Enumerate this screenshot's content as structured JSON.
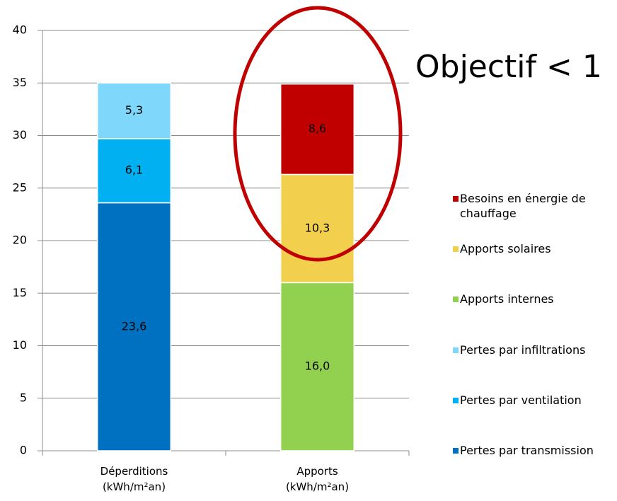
{
  "chart_data": {
    "type": "stacked_bar",
    "categories": [
      "Déperditions\n(kWh/m²an)",
      "Apports\n(kWh/m²an)"
    ],
    "series": [
      {
        "name": "Pertes par transmission",
        "color": "#0070c0",
        "values": [
          23.6,
          null
        ],
        "value_labels": [
          "23,6",
          null
        ]
      },
      {
        "name": "Pertes par ventilation",
        "color": "#00b0f0",
        "values": [
          6.1,
          null
        ],
        "value_labels": [
          "6,1",
          null
        ]
      },
      {
        "name": "Pertes par infiltrations",
        "color": "#7fd7fb",
        "values": [
          5.3,
          null
        ],
        "value_labels": [
          "5,3",
          null
        ]
      },
      {
        "name": "Apports internes",
        "color": "#92d050",
        "values": [
          null,
          16.0
        ],
        "value_labels": [
          null,
          "16,0"
        ]
      },
      {
        "name": "Apports solaires",
        "color": "#f2d04e",
        "values": [
          null,
          10.3
        ],
        "value_labels": [
          null,
          "10,3"
        ]
      },
      {
        "name": "Besoins en énergie de chauffage",
        "color": "#c00000",
        "values": [
          null,
          8.6
        ],
        "value_labels": [
          null,
          "8,6"
        ]
      }
    ],
    "ylim": [
      0,
      40
    ],
    "yticks": [
      0,
      5,
      10,
      15,
      20,
      25,
      30,
      35,
      40
    ],
    "grid": true,
    "legend": "right",
    "annotation": "Objectif < 1",
    "annotation_color": "#c00000"
  }
}
